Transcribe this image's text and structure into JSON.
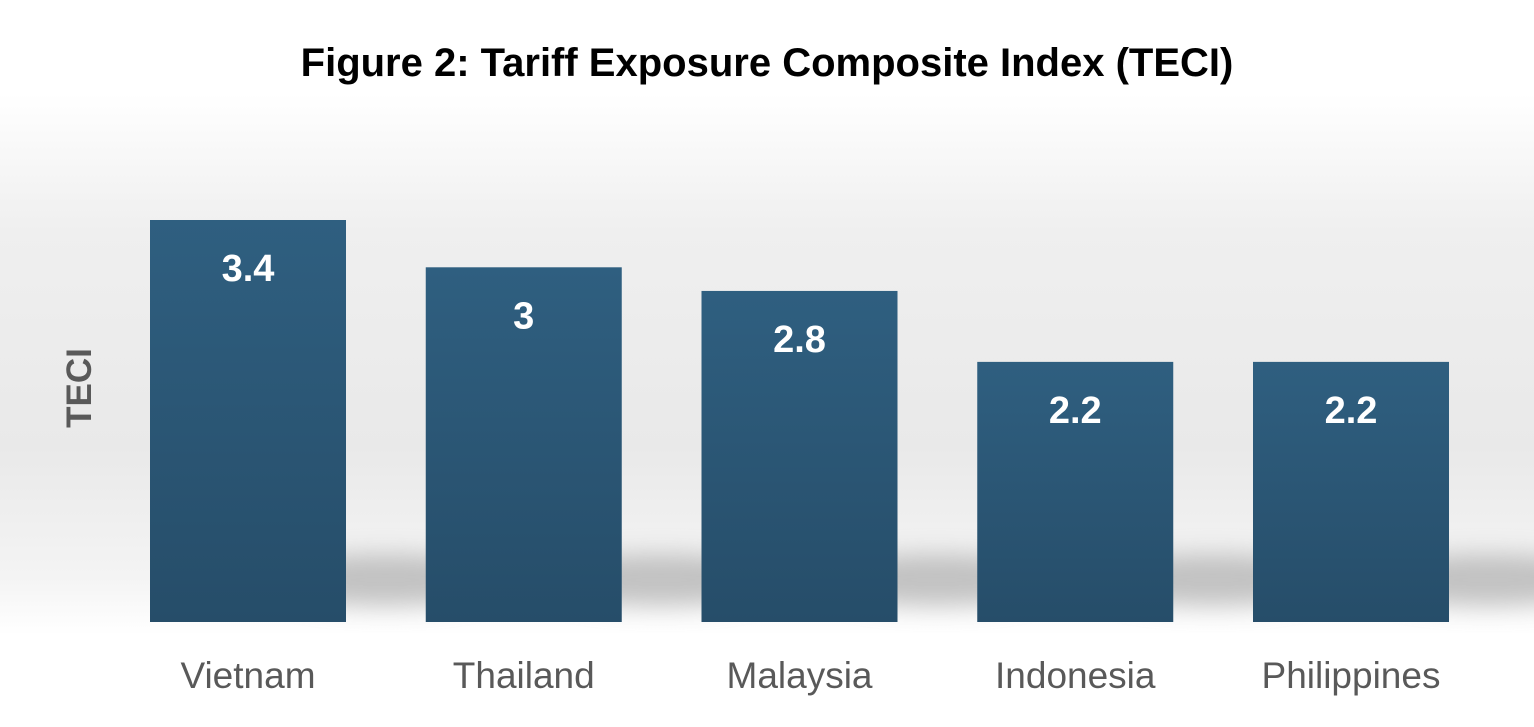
{
  "chart_data": {
    "type": "bar",
    "title": "Figure 2: Tariff Exposure Composite Index (TECI)",
    "xlabel": "",
    "ylabel": "TECI",
    "categories": [
      "Vietnam",
      "Thailand",
      "Malaysia",
      "Indonesia",
      "Philippines"
    ],
    "values": [
      3.4,
      3,
      2.8,
      2.2,
      2.2
    ],
    "data_labels": [
      "3.4",
      "3",
      "2.8",
      "2.2",
      "2.2"
    ],
    "ylim": [
      0,
      3.4
    ],
    "grid": false,
    "legend": "none",
    "colors": {
      "bar_top": "#2f5f80",
      "bar_bottom": "#264d69",
      "data_label": "#ffffff",
      "title": "#000000",
      "axis_label": "#595959",
      "tick_label": "#595959"
    }
  }
}
